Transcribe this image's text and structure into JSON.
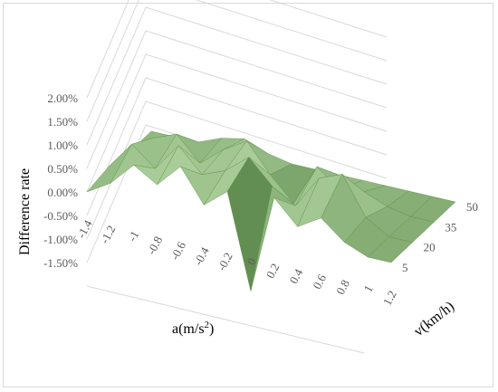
{
  "chart_data": {
    "type": "surface",
    "zlabel": "Difference rate",
    "xlabel_prefix": "a(m/s",
    "xlabel_sup": "2",
    "xlabel_suffix": ")",
    "ylabel": "v(km/h)",
    "z_ticks": [
      "2.00%",
      "1.50%",
      "1.00%",
      "0.50%",
      "0.00%",
      "-0.50%",
      "-1.00%",
      "-1.50%"
    ],
    "z_range": [
      -1.5,
      2.0
    ],
    "x_ticks": [
      "-1.4",
      "-1.2",
      "-1",
      "-0.8",
      "-0.6",
      "-0.4",
      "-0.2",
      "0",
      "0.2",
      "0.4",
      "0.6",
      "0.8",
      "1",
      "1.2"
    ],
    "y_ticks": [
      "5",
      "20",
      "35",
      "50"
    ],
    "grid": true,
    "colors": {
      "surface_base": "#7fbf5a",
      "surface_dark": "#3a6b2a",
      "surface_light": "#cfeebe",
      "gridline": "#d9d9d9",
      "tick": "#595959"
    },
    "surface_z": [
      [
        0.0,
        0.0,
        0.0,
        0.2,
        0.3,
        0.1,
        0.0,
        0.0,
        0.0,
        0.0,
        0.0,
        0.0,
        0.0,
        0.0
      ],
      [
        0.0,
        0.4,
        0.6,
        0.1,
        0.5,
        0.8,
        0.2,
        -0.3,
        0.6,
        0.2,
        0.3,
        0.1,
        0.0,
        0.0
      ],
      [
        0.1,
        0.7,
        0.3,
        0.9,
        0.4,
        0.6,
        1.0,
        0.5,
        0.2,
        0.9,
        1.1,
        0.3,
        0.0,
        0.0
      ],
      [
        0.0,
        0.3,
        0.8,
        0.5,
        1.0,
        0.3,
        0.7,
        -1.3,
        0.8,
        0.3,
        0.6,
        0.2,
        0.0,
        0.0
      ]
    ]
  }
}
